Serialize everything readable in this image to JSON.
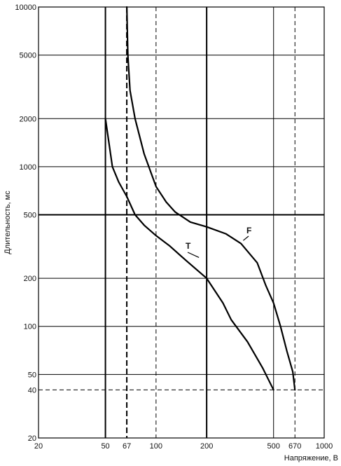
{
  "chart_data": {
    "type": "line",
    "title": "",
    "xlabel": "Напряжение, В",
    "ylabel": "Длительность, мс",
    "x_scale": "log",
    "y_scale": "log",
    "xlim": [
      20,
      1000
    ],
    "ylim": [
      20,
      10000
    ],
    "grid": true,
    "x_ticks": [
      {
        "value": 20,
        "label": "20"
      },
      {
        "value": 50,
        "label": "50"
      },
      {
        "value": 67,
        "label": "67"
      },
      {
        "value": 100,
        "label": "100"
      },
      {
        "value": 200,
        "label": "200"
      },
      {
        "value": 500,
        "label": "500"
      },
      {
        "value": 670,
        "label": "670"
      },
      {
        "value": 1000,
        "label": "1000"
      }
    ],
    "y_ticks": [
      {
        "value": 20,
        "label": "20"
      },
      {
        "value": 40,
        "label": "40"
      },
      {
        "value": 50,
        "label": "50"
      },
      {
        "value": 100,
        "label": "100"
      },
      {
        "value": 200,
        "label": "200"
      },
      {
        "value": 500,
        "label": "500"
      },
      {
        "value": 1000,
        "label": "1000"
      },
      {
        "value": 2000,
        "label": "2000"
      },
      {
        "value": 5000,
        "label": "5000"
      },
      {
        "value": 10000,
        "label": "10000"
      }
    ],
    "series": [
      {
        "name": "T",
        "points": [
          [
            50,
            2000
          ],
          [
            52,
            1500
          ],
          [
            55,
            1000
          ],
          [
            60,
            800
          ],
          [
            67,
            650
          ],
          [
            75,
            500
          ],
          [
            85,
            430
          ],
          [
            100,
            370
          ],
          [
            120,
            320
          ],
          [
            150,
            260
          ],
          [
            200,
            200
          ],
          [
            250,
            140
          ],
          [
            280,
            110
          ],
          [
            350,
            80
          ],
          [
            430,
            55
          ],
          [
            500,
            40
          ]
        ]
      },
      {
        "name": "F",
        "points": [
          [
            67,
            10000
          ],
          [
            68,
            5000
          ],
          [
            70,
            3000
          ],
          [
            75,
            2000
          ],
          [
            85,
            1200
          ],
          [
            100,
            750
          ],
          [
            115,
            600
          ],
          [
            130,
            520
          ],
          [
            160,
            450
          ],
          [
            200,
            420
          ],
          [
            260,
            380
          ],
          [
            320,
            330
          ],
          [
            400,
            250
          ],
          [
            450,
            180
          ],
          [
            500,
            140
          ],
          [
            550,
            100
          ],
          [
            600,
            70
          ],
          [
            650,
            52
          ],
          [
            670,
            40
          ]
        ]
      }
    ],
    "annotations": [
      {
        "text": "T",
        "series": "T"
      },
      {
        "text": "F",
        "series": "F"
      }
    ]
  }
}
